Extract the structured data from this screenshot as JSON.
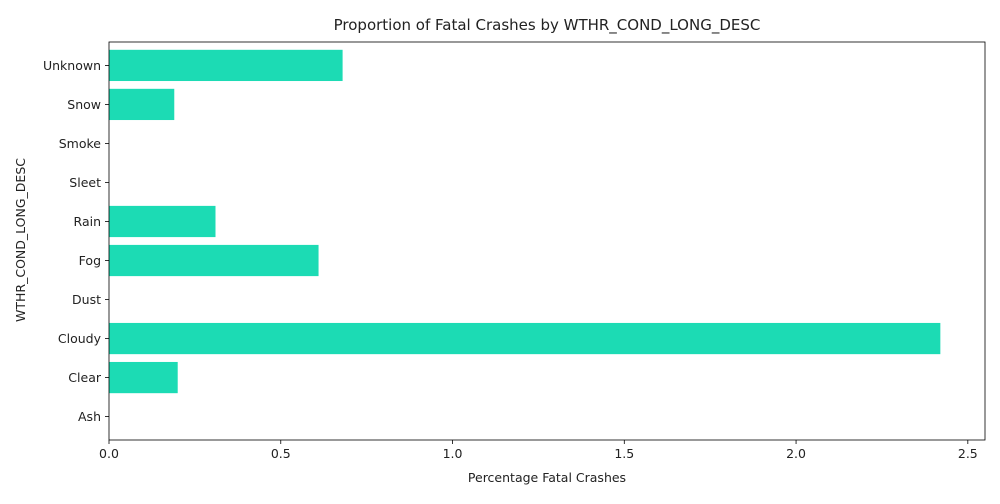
{
  "chart_data": {
    "type": "bar",
    "orientation": "horizontal",
    "title": "Proportion of Fatal Crashes by WTHR_COND_LONG_DESC",
    "xlabel": "Percentage Fatal Crashes",
    "ylabel": "WTHR_COND_LONG_DESC",
    "categories": [
      "Ash",
      "Clear",
      "Cloudy",
      "Dust",
      "Fog",
      "Rain",
      "Sleet",
      "Smoke",
      "Snow",
      "Unknown"
    ],
    "values": [
      0,
      0.2,
      2.42,
      0,
      0.61,
      0.31,
      0,
      0,
      0.19,
      0.68
    ],
    "xlim": [
      0,
      2.55
    ],
    "xticks": [
      0.0,
      0.5,
      1.0,
      1.5,
      2.0,
      2.5
    ],
    "xtick_labels": [
      "0.0",
      "0.5",
      "1.0",
      "1.5",
      "2.0",
      "2.5"
    ],
    "bar_color": "#1cdbb4",
    "grid": false,
    "legend": "none"
  }
}
